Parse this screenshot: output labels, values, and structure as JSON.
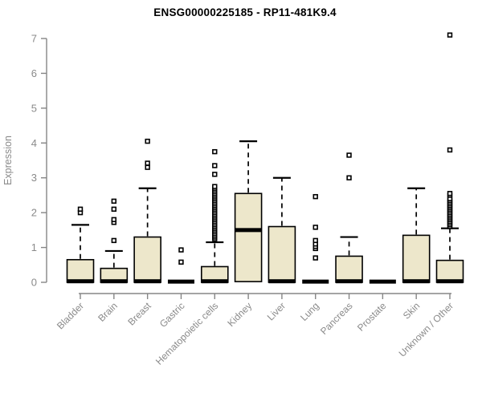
{
  "chart_data": {
    "type": "boxplot",
    "title": "ENSG00000225185 - RP11-481K9.4",
    "ylabel": "Expression",
    "xlabel": "",
    "ylim": [
      0,
      7.4
    ],
    "y_ticks": [
      0,
      1,
      2,
      3,
      4,
      5,
      6,
      7
    ],
    "grid": false,
    "legend_position": "none",
    "categories": [
      "Bladder",
      "Brain",
      "Breast",
      "Gastric",
      "Hematopoietic cells",
      "Kidney",
      "Liver",
      "Lung",
      "Pancreas",
      "Prostate",
      "Skin",
      "Unknown / Other"
    ],
    "series": [
      {
        "name": "Bladder",
        "q1": 0,
        "median": 0.03,
        "q3": 0.65,
        "whisker_low": 0,
        "whisker_high": 1.65,
        "outliers": [
          2.0,
          2.1
        ]
      },
      {
        "name": "Brain",
        "q1": 0,
        "median": 0.03,
        "q3": 0.4,
        "whisker_low": 0,
        "whisker_high": 0.9,
        "outliers": [
          1.2,
          1.72,
          1.8,
          2.1,
          2.33
        ]
      },
      {
        "name": "Breast",
        "q1": 0,
        "median": 0.03,
        "q3": 1.3,
        "whisker_low": 0,
        "whisker_high": 2.7,
        "outliers": [
          3.3,
          3.42,
          4.05
        ]
      },
      {
        "name": "Gastric",
        "q1": 0,
        "median": 0.02,
        "q3": 0.04,
        "whisker_low": 0,
        "whisker_high": 0.04,
        "outliers": [
          0.58,
          0.93
        ]
      },
      {
        "name": "Hematopoietic cells",
        "q1": 0,
        "median": 0.03,
        "q3": 0.45,
        "whisker_low": 0,
        "whisker_high": 1.15,
        "outliers": [
          1.25,
          1.3,
          1.35,
          1.4,
          1.45,
          1.5,
          1.55,
          1.6,
          1.65,
          1.7,
          1.75,
          1.8,
          1.85,
          1.9,
          1.95,
          2.0,
          2.05,
          2.1,
          2.15,
          2.2,
          2.25,
          2.3,
          2.35,
          2.4,
          2.45,
          2.5,
          2.55,
          2.6,
          2.65,
          2.7,
          2.75,
          3.1,
          3.35,
          3.75
        ]
      },
      {
        "name": "Kidney",
        "q1": 0.02,
        "median": 1.5,
        "q3": 2.55,
        "whisker_low": 0,
        "whisker_high": 4.05,
        "outliers": []
      },
      {
        "name": "Liver",
        "q1": 0,
        "median": 0.03,
        "q3": 1.6,
        "whisker_low": 0,
        "whisker_high": 3.0,
        "outliers": []
      },
      {
        "name": "Lung",
        "q1": 0,
        "median": 0.02,
        "q3": 0.04,
        "whisker_low": 0,
        "whisker_high": 0.04,
        "outliers": [
          0.7,
          0.97,
          1.03,
          1.1,
          1.2,
          1.58,
          2.46
        ]
      },
      {
        "name": "Pancreas",
        "q1": 0,
        "median": 0.03,
        "q3": 0.75,
        "whisker_low": 0,
        "whisker_high": 1.3,
        "outliers": [
          3.0,
          3.65
        ]
      },
      {
        "name": "Prostate",
        "q1": 0,
        "median": 0.02,
        "q3": 0.03,
        "whisker_low": 0,
        "whisker_high": 0.03,
        "outliers": []
      },
      {
        "name": "Skin",
        "q1": 0,
        "median": 0.03,
        "q3": 1.35,
        "whisker_low": 0,
        "whisker_high": 2.7,
        "outliers": []
      },
      {
        "name": "Unknown / Other",
        "q1": 0,
        "median": 0.03,
        "q3": 0.63,
        "whisker_low": 0,
        "whisker_high": 1.55,
        "outliers": [
          1.6,
          1.65,
          1.7,
          1.75,
          1.8,
          1.85,
          1.9,
          1.95,
          2.0,
          2.05,
          2.1,
          2.15,
          2.2,
          2.25,
          2.3,
          2.35,
          2.4,
          2.5,
          2.55,
          3.8,
          7.1
        ]
      }
    ],
    "colors": {
      "box_fill": "#EDE7CB",
      "box_border": "#000000",
      "median": "#000000",
      "whisker": "#000000",
      "outlier": "#000000",
      "axis": "#858585",
      "tick_label": "#8a8a8a",
      "axis_title": "#8a8a8a",
      "title": "#000000",
      "background": "#ffffff"
    }
  }
}
